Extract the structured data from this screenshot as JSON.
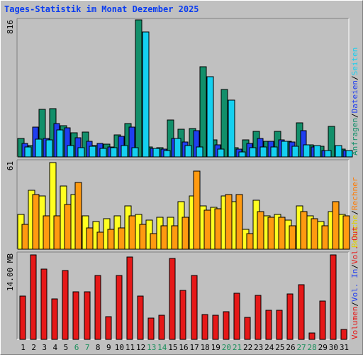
{
  "title": "Tages-Statistik im Monat Dezember 2025",
  "colors": {
    "background": "#c0c0c0",
    "anfragen": "#128f6a",
    "dateien": "#1f3ef0",
    "seiten": "#14d0f0",
    "besuche": "#ffff20",
    "rechner": "#ff9a10",
    "volumen": "#e61818",
    "axis_text": "#000000",
    "weekend_day": "#1a8f5a"
  },
  "panel_labels": {
    "top_max": "816",
    "middle_max": "61",
    "bottom_max": "14.00 MB"
  },
  "legends": {
    "top": [
      {
        "text": "Anfragen",
        "color": "#128f6a"
      },
      {
        "text": "Dateien",
        "color": "#1f3ef0"
      },
      {
        "text": "Seiten",
        "color": "#14d0f0"
      }
    ],
    "middle": [
      {
        "text": "Besuche",
        "color": "#e0d000"
      },
      {
        "text": "Rechner",
        "color": "#ff7a00"
      }
    ],
    "bottom": [
      {
        "text": "Volumen",
        "color": "#e61818"
      },
      {
        "text": "Vol. In",
        "color": "#1f3ef0"
      },
      {
        "text": "Vol. Out",
        "color": "#e61818"
      }
    ],
    "separator": "/"
  },
  "chart_data": [
    {
      "type": "bar",
      "x": [
        "1",
        "2",
        "3",
        "4",
        "5",
        "6",
        "7",
        "8",
        "9",
        "10",
        "11",
        "12",
        "13",
        "14",
        "15",
        "16",
        "17",
        "18",
        "19",
        "20",
        "21",
        "22",
        "23",
        "24",
        "25",
        "26",
        "27",
        "28",
        "29",
        "30",
        "31"
      ],
      "weekend_days": [
        "6",
        "7",
        "13",
        "14",
        "20",
        "21",
        "27",
        "28"
      ],
      "ylim": [
        0,
        816
      ],
      "series": [
        {
          "name": "Anfragen",
          "values": [
            112,
            68,
            282,
            286,
            186,
            144,
            149,
            66,
            74,
            132,
            199,
            816,
            61,
            56,
            221,
            166,
            170,
            537,
            100,
            403,
            55,
            101,
            154,
            94,
            153,
            94,
            204,
            71,
            65,
            183,
            47
          ]
        },
        {
          "name": "Dateien",
          "values": [
            79,
            178,
            112,
            200,
            172,
            114,
            92,
            82,
            61,
            122,
            177,
            0,
            49,
            47,
            110,
            90,
            156,
            0,
            73,
            0,
            46,
            82,
            110,
            91,
            102,
            89,
            157,
            59,
            39,
            0,
            39
          ]
        },
        {
          "name": "Seiten",
          "values": [
            58,
            106,
            101,
            161,
            69,
            57,
            64,
            51,
            55,
            67,
            56,
            745,
            49,
            36,
            110,
            68,
            60,
            478,
            45,
            338,
            31,
            55,
            60,
            59,
            95,
            62,
            72,
            67,
            38,
            68,
            36
          ]
        }
      ]
    },
    {
      "type": "bar",
      "x": [
        "1",
        "2",
        "3",
        "4",
        "5",
        "6",
        "7",
        "8",
        "9",
        "10",
        "11",
        "12",
        "13",
        "14",
        "15",
        "16",
        "17",
        "18",
        "19",
        "20",
        "21",
        "22",
        "23",
        "24",
        "25",
        "26",
        "27",
        "28",
        "29",
        "30",
        "31"
      ],
      "ylim": [
        0,
        61
      ],
      "series": [
        {
          "name": "Besuche",
          "values": [
            24,
            41,
            37,
            60,
            44,
            38,
            23,
            19,
            21,
            23,
            30,
            24,
            20,
            22,
            22,
            33,
            37,
            30,
            29,
            37,
            33,
            14,
            34,
            23,
            24,
            20,
            30,
            23,
            19,
            26,
            24
          ]
        },
        {
          "name": "Rechner",
          "values": [
            17,
            38,
            23,
            23,
            31,
            46,
            15,
            12,
            14,
            15,
            23,
            17,
            11,
            16,
            16,
            22,
            54,
            27,
            28,
            38,
            38,
            11,
            26,
            22,
            22,
            16,
            26,
            21,
            16,
            33,
            23
          ]
        }
      ]
    },
    {
      "type": "bar",
      "x": [
        "1",
        "2",
        "3",
        "4",
        "5",
        "6",
        "7",
        "8",
        "9",
        "10",
        "11",
        "12",
        "13",
        "14",
        "15",
        "16",
        "17",
        "18",
        "19",
        "20",
        "21",
        "22",
        "23",
        "24",
        "25",
        "26",
        "27",
        "28",
        "29",
        "30",
        "31"
      ],
      "ylim": [
        0,
        14.0
      ],
      "ylabel": "MB",
      "series": [
        {
          "name": "Volumen",
          "values": [
            7.0,
            13.8,
            11.4,
            6.6,
            11.2,
            7.7,
            7.8,
            10.4,
            3.7,
            10.4,
            13.4,
            7.1,
            3.5,
            3.9,
            13.2,
            8.0,
            10.4,
            4.0,
            3.9,
            4.5,
            7.5,
            3.6,
            7.2,
            4.7,
            4.7,
            7.4,
            8.9,
            1.0,
            6.3,
            13.8,
            1.6
          ]
        }
      ]
    }
  ]
}
